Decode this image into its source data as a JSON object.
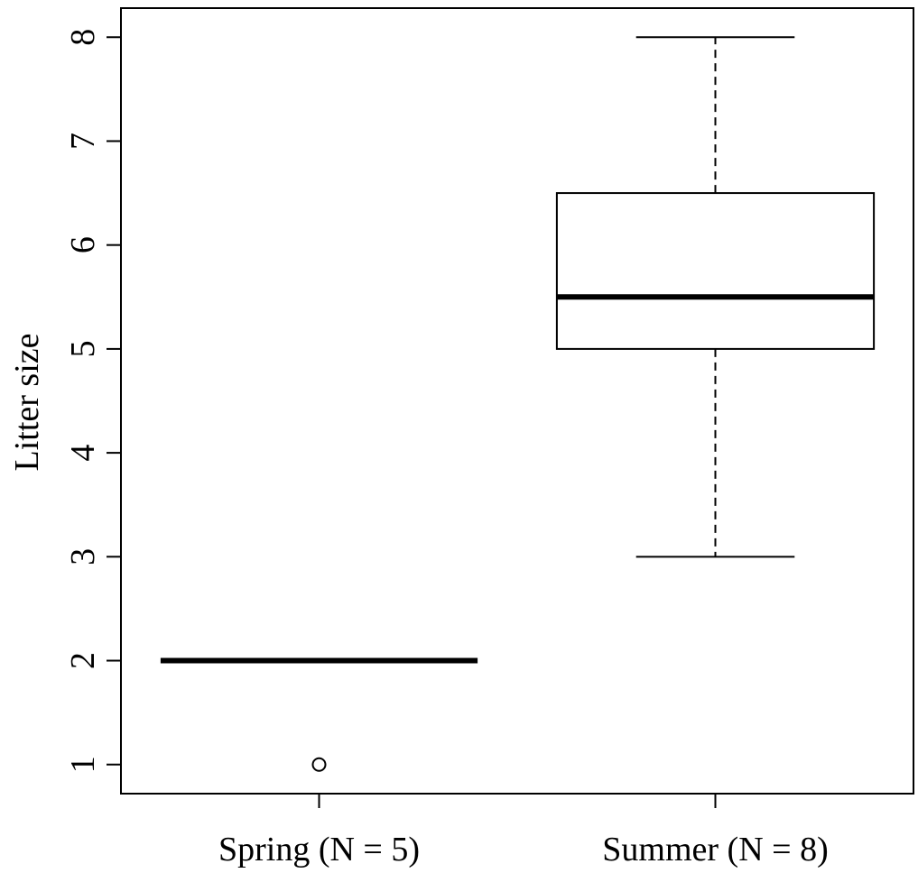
{
  "chart_data": {
    "type": "boxplot",
    "title": "",
    "xlabel": "",
    "ylabel": "Litter size",
    "ylim": [
      0.72,
      8.28
    ],
    "yticks": [
      1,
      2,
      3,
      4,
      5,
      6,
      7,
      8
    ],
    "grid": false,
    "categories": [
      "Spring (N = 5)",
      "Summer (N = 8)"
    ],
    "boxes": [
      {
        "whisker_low": 2,
        "q1": 2,
        "median": 2,
        "q3": 2,
        "whisker_high": 2,
        "outliers": [
          1
        ]
      },
      {
        "whisker_low": 3,
        "q1": 5,
        "median": 5.5,
        "q3": 6.5,
        "whisker_high": 8,
        "outliers": []
      }
    ],
    "colors": {
      "line": "#000000",
      "fill": "#ffffff"
    }
  }
}
